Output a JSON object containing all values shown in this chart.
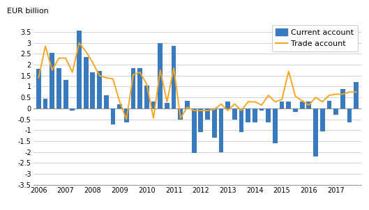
{
  "ylabel": "EUR billion",
  "ylim": [
    -3.5,
    4.0
  ],
  "yticks": [
    -3.5,
    -3.0,
    -2.5,
    -2.0,
    -1.5,
    -1.0,
    -0.5,
    0.0,
    0.5,
    1.0,
    1.5,
    2.0,
    2.5,
    3.0,
    3.5
  ],
  "bar_color": "#3a7abf",
  "line_color": "#f5a623",
  "legend_labels": [
    "Current account",
    "Trade account"
  ],
  "bar_width": 0.7,
  "current_account": [
    1.8,
    0.45,
    2.55,
    1.85,
    1.3,
    -0.1,
    3.55,
    2.35,
    1.65,
    1.7,
    0.6,
    -0.75,
    0.2,
    -0.65,
    1.85,
    1.85,
    1.05,
    0.3,
    3.0,
    0.25,
    2.85,
    -0.5,
    0.35,
    -2.05,
    -1.1,
    -0.5,
    -1.35,
    -2.0,
    0.3,
    -0.5,
    -1.1,
    -0.65,
    -0.65,
    -0.1,
    -0.65,
    -1.6,
    0.3,
    0.3,
    -0.15,
    0.3,
    0.3,
    -2.2,
    -1.05,
    0.35,
    -0.3,
    0.9,
    -0.65,
    1.2
  ],
  "trade_account": [
    1.4,
    2.85,
    1.75,
    2.3,
    2.3,
    1.65,
    3.0,
    2.6,
    2.1,
    1.5,
    1.4,
    1.35,
    0.3,
    -0.5,
    1.55,
    1.65,
    1.1,
    -0.45,
    1.75,
    0.3,
    1.85,
    -0.45,
    0.05,
    -0.1,
    -0.1,
    -0.1,
    -0.05,
    0.2,
    -0.1,
    0.2,
    -0.1,
    0.3,
    0.3,
    0.15,
    0.6,
    0.3,
    0.4,
    1.7,
    0.55,
    0.35,
    0.15,
    0.5,
    0.3,
    0.6,
    0.65,
    0.65,
    0.75,
    0.75
  ],
  "xtick_positions": [
    0,
    4,
    8,
    12,
    16,
    20,
    24,
    28,
    32,
    36,
    40,
    44
  ],
  "xtick_labels": [
    "2006",
    "2007",
    "2008",
    "2009",
    "2010",
    "2011",
    "2012",
    "2013",
    "2014",
    "2015",
    "2016",
    "2017"
  ],
  "bg_color": "#ffffff",
  "grid_color": "#d0d0d0",
  "ylabel_fontsize": 8,
  "tick_fontsize": 7,
  "legend_fontsize": 8
}
